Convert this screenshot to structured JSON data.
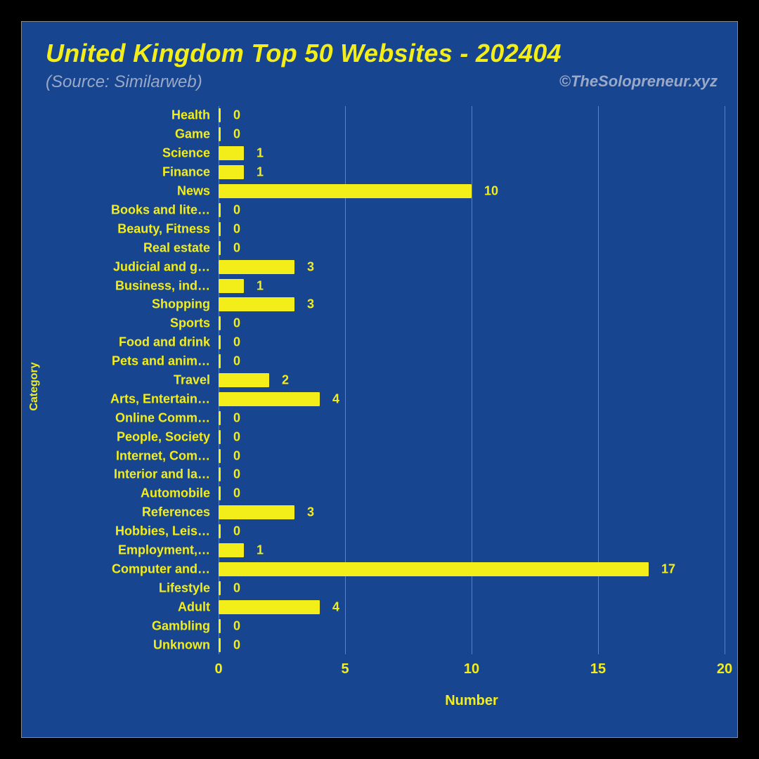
{
  "chart": {
    "type": "bar-horizontal",
    "background_color": "#17458f",
    "accent_color": "#f3ed1a",
    "grid_color": "#9aa9c7",
    "muted_color": "#9aa9c7",
    "title": "United Kingdom Top 50 Websites - 202404",
    "subtitle": "(Source: Similarweb)",
    "credit": "©TheSolopreneur.xyz",
    "x_axis_label": "Number",
    "y_axis_label": "Category",
    "xlim": [
      0,
      20
    ],
    "xticks": [
      0,
      5,
      10,
      15,
      20
    ],
    "title_fontsize": 36,
    "subtitle_fontsize": 24,
    "tick_fontsize": 20,
    "category_fontsize": 18,
    "categories": [
      {
        "label": "Health",
        "value": 0
      },
      {
        "label": "Game",
        "value": 0
      },
      {
        "label": "Science",
        "value": 1
      },
      {
        "label": "Finance",
        "value": 1
      },
      {
        "label": "News",
        "value": 10
      },
      {
        "label": "Books and lite…",
        "value": 0
      },
      {
        "label": "Beauty, Fitness",
        "value": 0
      },
      {
        "label": "Real estate",
        "value": 0
      },
      {
        "label": "Judicial and g…",
        "value": 3
      },
      {
        "label": "Business, ind…",
        "value": 1
      },
      {
        "label": "Shopping",
        "value": 3
      },
      {
        "label": "Sports",
        "value": 0
      },
      {
        "label": "Food and drink",
        "value": 0
      },
      {
        "label": "Pets and anim…",
        "value": 0
      },
      {
        "label": "Travel",
        "value": 2
      },
      {
        "label": "Arts, Entertain…",
        "value": 4
      },
      {
        "label": "Online Comm…",
        "value": 0
      },
      {
        "label": "People, Society",
        "value": 0
      },
      {
        "label": "Internet, Com…",
        "value": 0
      },
      {
        "label": "Interior and la…",
        "value": 0
      },
      {
        "label": "Automobile",
        "value": 0
      },
      {
        "label": "References",
        "value": 3
      },
      {
        "label": "Hobbies, Leis…",
        "value": 0
      },
      {
        "label": "Employment,…",
        "value": 1
      },
      {
        "label": "Computer and…",
        "value": 17
      },
      {
        "label": "Lifestyle",
        "value": 0
      },
      {
        "label": "Adult",
        "value": 4
      },
      {
        "label": "Gambling",
        "value": 0
      },
      {
        "label": "Unknown",
        "value": 0
      }
    ]
  }
}
